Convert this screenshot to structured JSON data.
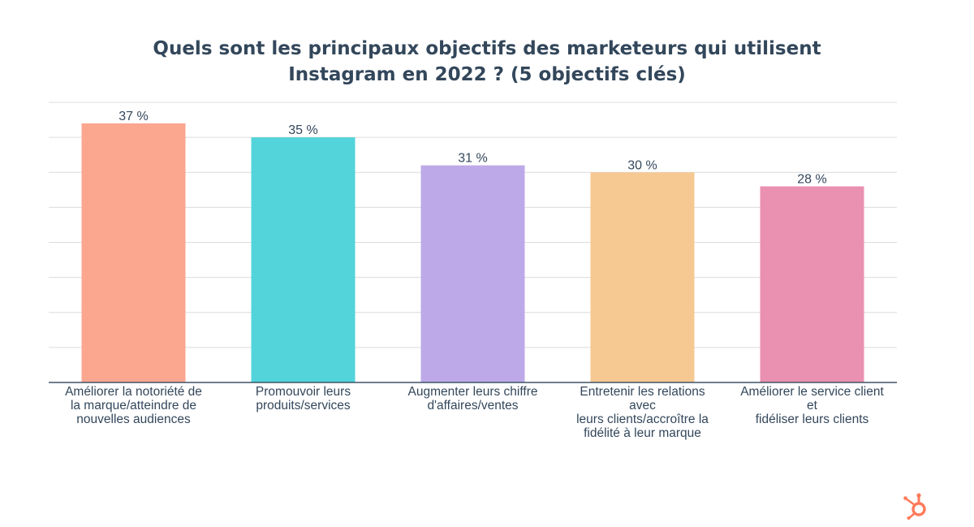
{
  "chart_data": {
    "type": "bar",
    "title_lines": [
      "Quels sont les principaux objectifs des marketeurs qui utilisent",
      "Instagram en 2022 ? (5 objectifs clés)"
    ],
    "categories": [
      "Améliorer la notoriété de la marque/atteindre de nouvelles audiences",
      "Promouvoir leurs produits/services",
      "Augmenter leurs chiffre d'affaires/ventes",
      "Entretenir les relations avec leurs clients/accroître la fidélité à leur marque",
      "Améliorer le service client et fidéliser leurs clients"
    ],
    "category_label_lines": [
      [
        "Améliorer la notoriété de",
        "la marque/atteindre de",
        "nouvelles audiences"
      ],
      [
        "Promouvoir leurs",
        "produits/services"
      ],
      [
        "Augmenter leurs chiffre",
        "d'affaires/ventes"
      ],
      [
        "Entretenir les relations avec",
        "leurs clients/accroître la",
        "fidélité à leur marque"
      ],
      [
        "Améliorer le service client et",
        "fidéliser leurs clients"
      ]
    ],
    "values": [
      37,
      35,
      31,
      30,
      28
    ],
    "data_labels": [
      "37 %",
      "35 %",
      "31 %",
      "30 %",
      "28 %"
    ],
    "colors": [
      "#fba68f",
      "#52d4da",
      "#bea9e8",
      "#f6c892",
      "#ea90b1"
    ],
    "ylim": [
      0,
      40
    ],
    "y_ticks": [
      0,
      5,
      10,
      15,
      20,
      25,
      30,
      35,
      40
    ],
    "grid": true,
    "legend": "none"
  },
  "brand": {
    "logo_icon": "hubspot-sprocket-icon",
    "accent": "#ff7a59"
  }
}
